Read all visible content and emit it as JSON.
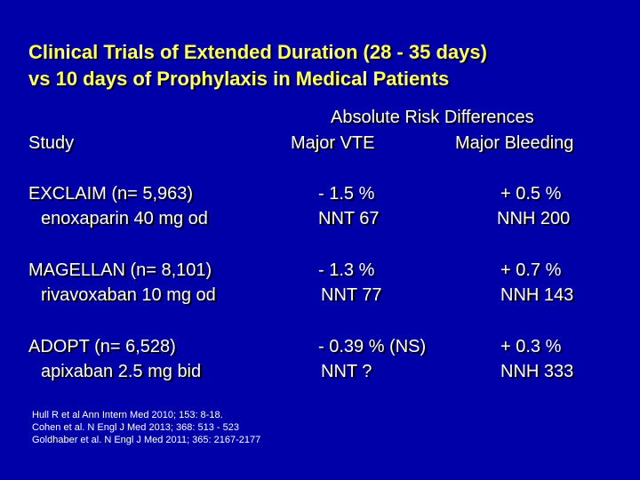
{
  "slide": {
    "title_line1": "Clinical Trials of Extended Duration (28 - 35 days)",
    "title_line2": "vs 10 days of Prophylaxis in Medical Patients",
    "header": {
      "study": "Study",
      "group": "Absolute Risk Differences",
      "vte": "Major VTE",
      "bleeding": "Major Bleeding"
    },
    "rows": [
      {
        "trial": "EXCLAIM (n= 5,963)",
        "drug": "enoxaparin 40 mg od",
        "vte_diff": "- 1.5 %",
        "vte_nnt": "NNT 67",
        "bleed_diff": "+ 0.5 %",
        "bleed_nnh": "NNH 200"
      },
      {
        "trial": "MAGELLAN (n= 8,101)",
        "drug": "rivavoxaban 10 mg od",
        "vte_diff": "- 1.3 %",
        "vte_nnt": "NNT 77",
        "bleed_diff": "+ 0.7 %",
        "bleed_nnh": "NNH 143"
      },
      {
        "trial": "ADOPT (n= 6,528)",
        "drug": "apixaban 2.5 mg bid",
        "vte_diff": "- 0.39 % (NS)",
        "vte_nnt": "NNT ?",
        "bleed_diff": "+ 0.3 %",
        "bleed_nnh": "NNH 333"
      }
    ],
    "references": [
      "Hull R et al  Ann Intern Med 2010; 153: 8-18.",
      "Cohen et al.  N Engl J Med 2013; 368: 513 - 523",
      "Goldhaber et al. N Engl J Med 2011; 365: 2167-2177"
    ]
  }
}
